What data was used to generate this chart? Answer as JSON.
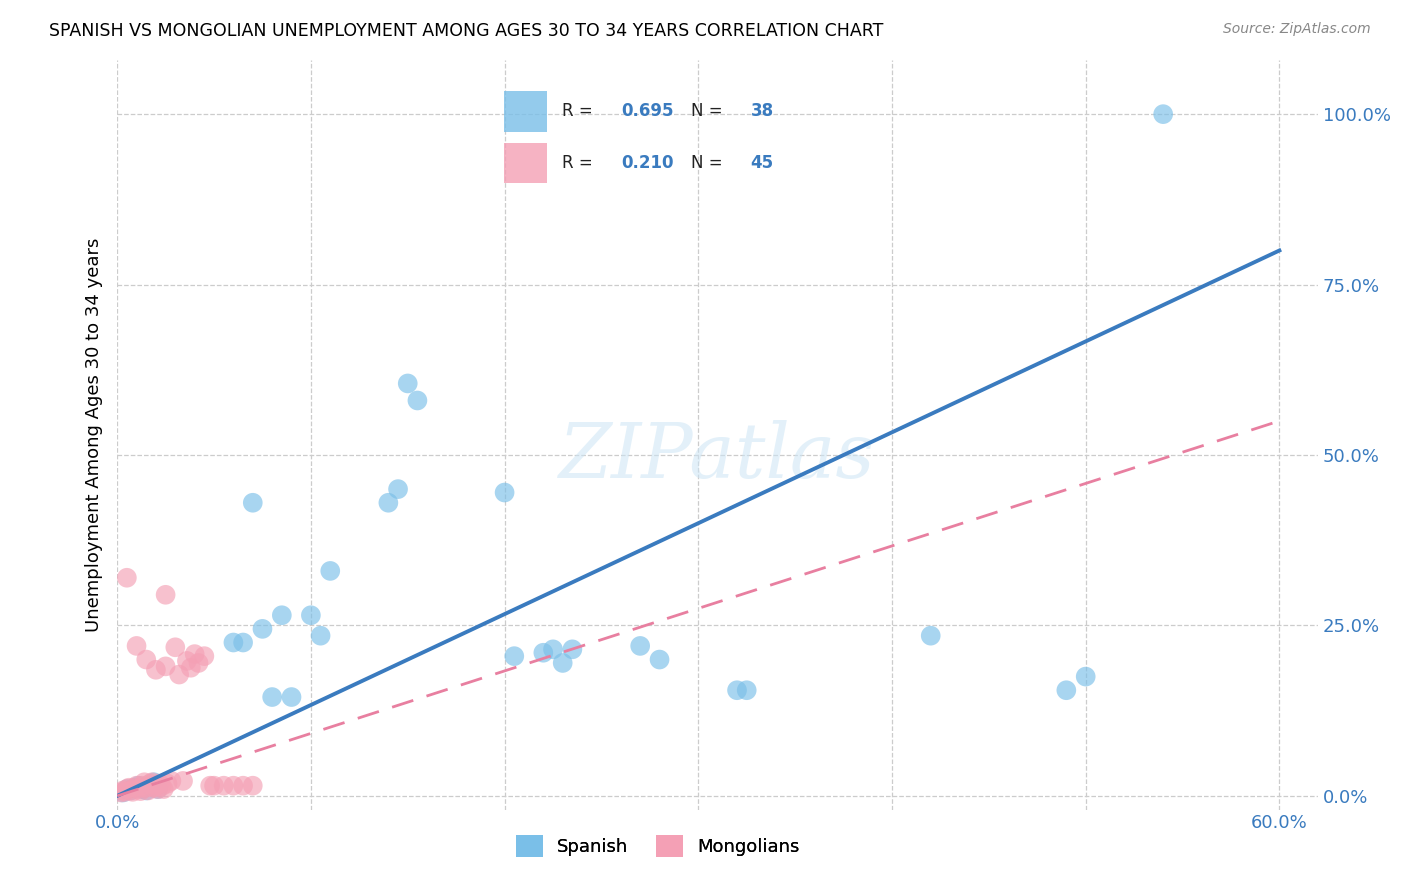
{
  "title": "SPANISH VS MONGOLIAN UNEMPLOYMENT AMONG AGES 30 TO 34 YEARS CORRELATION CHART",
  "source": "Source: ZipAtlas.com",
  "ylabel": "Unemployment Among Ages 30 to 34 years",
  "xlim": [
    0.0,
    0.62
  ],
  "ylim": [
    -0.02,
    1.08
  ],
  "xticks": [
    0.0,
    0.1,
    0.2,
    0.3,
    0.4,
    0.5,
    0.6
  ],
  "xticklabels": [
    "0.0%",
    "",
    "",
    "",
    "",
    "",
    "60.0%"
  ],
  "yticks": [
    0.0,
    0.25,
    0.5,
    0.75,
    1.0
  ],
  "yticklabels": [
    "0.0%",
    "25.0%",
    "50.0%",
    "75.0%",
    "100.0%"
  ],
  "spanish_R": 0.695,
  "spanish_N": 38,
  "mongolian_R": 0.21,
  "mongolian_N": 45,
  "spanish_color": "#7abfe8",
  "mongolian_color": "#f4a0b5",
  "spanish_line_color": "#3a7bbf",
  "mongolian_line_color": "#e87fa0",
  "watermark": "ZIPatlas",
  "spanish_x": [
    0.003,
    0.005,
    0.007,
    0.009,
    0.011,
    0.013,
    0.015,
    0.017,
    0.019,
    0.021,
    0.06,
    0.065,
    0.07,
    0.075,
    0.08,
    0.085,
    0.09,
    0.1,
    0.105,
    0.11,
    0.14,
    0.145,
    0.15,
    0.155,
    0.2,
    0.205,
    0.22,
    0.225,
    0.23,
    0.235,
    0.27,
    0.28,
    0.32,
    0.325,
    0.42,
    0.49,
    0.5,
    0.54
  ],
  "spanish_y": [
    0.005,
    0.01,
    0.008,
    0.012,
    0.015,
    0.01,
    0.008,
    0.015,
    0.02,
    0.01,
    0.225,
    0.225,
    0.43,
    0.245,
    0.145,
    0.265,
    0.145,
    0.265,
    0.235,
    0.33,
    0.43,
    0.45,
    0.605,
    0.58,
    0.445,
    0.205,
    0.21,
    0.215,
    0.195,
    0.215,
    0.22,
    0.2,
    0.155,
    0.155,
    0.235,
    0.155,
    0.175,
    1.0
  ],
  "mongolian_x": [
    0.002,
    0.003,
    0.004,
    0.005,
    0.006,
    0.007,
    0.008,
    0.009,
    0.01,
    0.011,
    0.012,
    0.013,
    0.014,
    0.015,
    0.016,
    0.017,
    0.018,
    0.019,
    0.02,
    0.021,
    0.022,
    0.023,
    0.024,
    0.025,
    0.026,
    0.028,
    0.03,
    0.032,
    0.034,
    0.036,
    0.038,
    0.04,
    0.042,
    0.045,
    0.048,
    0.05,
    0.055,
    0.06,
    0.065,
    0.07,
    0.005,
    0.01,
    0.015,
    0.02,
    0.025
  ],
  "mongolian_y": [
    0.005,
    0.008,
    0.006,
    0.01,
    0.012,
    0.008,
    0.006,
    0.012,
    0.015,
    0.01,
    0.007,
    0.015,
    0.02,
    0.012,
    0.008,
    0.018,
    0.02,
    0.012,
    0.015,
    0.01,
    0.018,
    0.014,
    0.01,
    0.295,
    0.018,
    0.022,
    0.218,
    0.178,
    0.022,
    0.198,
    0.188,
    0.208,
    0.195,
    0.205,
    0.015,
    0.015,
    0.015,
    0.015,
    0.015,
    0.015,
    0.32,
    0.22,
    0.2,
    0.185,
    0.19
  ],
  "blue_line_x": [
    0.0,
    0.6
  ],
  "blue_line_y": [
    0.0,
    0.8
  ],
  "pink_line_x": [
    0.0,
    0.6
  ],
  "pink_line_y": [
    0.0,
    0.55
  ]
}
